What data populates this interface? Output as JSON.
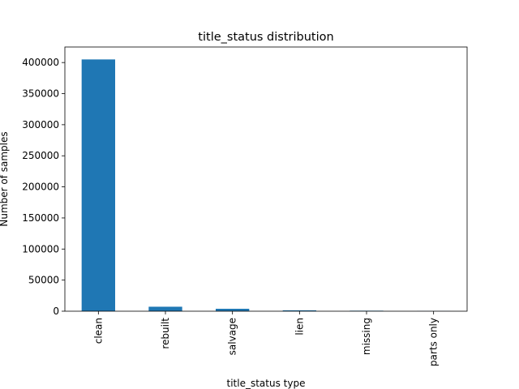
{
  "chart_data": {
    "type": "bar",
    "title": "title_status distribution",
    "xlabel": "title_status type",
    "ylabel": "Number of samples",
    "categories": [
      "clean",
      "rebuilt",
      "salvage",
      "lien",
      "missing",
      "parts only"
    ],
    "values": [
      405000,
      7200,
      3900,
      1400,
      800,
      200
    ],
    "ylim": [
      0,
      425000
    ],
    "yticks": [
      0,
      50000,
      100000,
      150000,
      200000,
      250000,
      300000,
      350000,
      400000
    ],
    "ytick_labels": [
      "0",
      "50000",
      "100000",
      "150000",
      "200000",
      "250000",
      "300000",
      "350000",
      "400000"
    ],
    "bar_color": "#1f77b4",
    "grid": false,
    "legend": null
  }
}
